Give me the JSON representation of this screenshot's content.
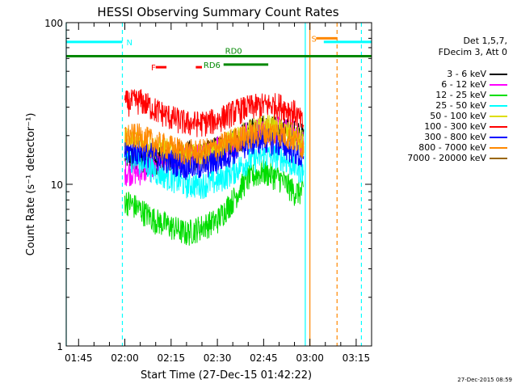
{
  "chart_data": {
    "type": "line",
    "title": "HESSI Observing Summary Count Rates",
    "xlabel": "Start Time (27-Dec-15 01:42:22)",
    "ylabel": "Count Rate (s⁻¹ detector⁻¹)",
    "x_unit": "minutes",
    "xlim_min": [
      101,
      200
    ],
    "ylim": [
      1,
      100
    ],
    "y_scale": "log",
    "x_ticks": [
      {
        "min": 105,
        "label": "01:45"
      },
      {
        "min": 120,
        "label": "02:00"
      },
      {
        "min": 135,
        "label": "02:15"
      },
      {
        "min": 150,
        "label": "02:30"
      },
      {
        "min": 165,
        "label": "02:45"
      },
      {
        "min": 180,
        "label": "03:00"
      },
      {
        "min": 195,
        "label": "03:15"
      }
    ],
    "y_ticks": [
      {
        "value": 1,
        "label": "1"
      },
      {
        "value": 10,
        "label": "10"
      },
      {
        "value": 100,
        "label": "100"
      }
    ],
    "legend_header": [
      "Det 1,5,7,",
      "FDecim 3, Att 0"
    ],
    "legend_placement": "right",
    "series": [
      {
        "name": "3 - 6 keV",
        "color": "#000000",
        "points": [
          [
            120,
            15
          ],
          [
            125,
            14
          ],
          [
            130,
            14
          ],
          [
            135,
            15
          ],
          [
            140,
            16
          ],
          [
            145,
            15
          ],
          [
            150,
            17
          ],
          [
            155,
            18
          ],
          [
            160,
            21
          ],
          [
            165,
            23
          ],
          [
            170,
            22
          ],
          [
            175,
            21
          ],
          [
            178,
            20
          ]
        ]
      },
      {
        "name": "6 - 12 keV",
        "color": "#ff00ff",
        "points": [
          [
            120,
            12
          ],
          [
            125,
            12
          ],
          [
            130,
            13
          ],
          [
            135,
            14
          ],
          [
            140,
            15
          ],
          [
            145,
            15
          ],
          [
            150,
            17
          ],
          [
            155,
            18
          ],
          [
            160,
            21
          ],
          [
            165,
            22
          ],
          [
            170,
            22
          ],
          [
            175,
            21
          ],
          [
            178,
            18
          ]
        ]
      },
      {
        "name": "12 - 25 keV",
        "color": "#00dd00",
        "points": [
          [
            120,
            8
          ],
          [
            125,
            7
          ],
          [
            130,
            6
          ],
          [
            135,
            5.5
          ],
          [
            140,
            5
          ],
          [
            145,
            5.5
          ],
          [
            150,
            6
          ],
          [
            155,
            8
          ],
          [
            160,
            11
          ],
          [
            165,
            12
          ],
          [
            170,
            11
          ],
          [
            175,
            9
          ],
          [
            178,
            9
          ]
        ]
      },
      {
        "name": "25 - 50 keV",
        "color": "#00ffff",
        "points": [
          [
            120,
            15
          ],
          [
            125,
            14
          ],
          [
            130,
            12
          ],
          [
            135,
            11
          ],
          [
            140,
            10
          ],
          [
            145,
            10
          ],
          [
            150,
            10.5
          ],
          [
            155,
            12
          ],
          [
            160,
            14
          ],
          [
            165,
            15
          ],
          [
            170,
            15
          ],
          [
            175,
            13
          ],
          [
            178,
            12
          ]
        ]
      },
      {
        "name": "50 - 100 keV",
        "color": "#dddd00",
        "points": [
          [
            120,
            19
          ],
          [
            125,
            18
          ],
          [
            130,
            17
          ],
          [
            135,
            16
          ],
          [
            140,
            15
          ],
          [
            145,
            15
          ],
          [
            150,
            16
          ],
          [
            155,
            19
          ],
          [
            160,
            21
          ],
          [
            165,
            23
          ],
          [
            170,
            22
          ],
          [
            175,
            20
          ],
          [
            178,
            18
          ]
        ]
      },
      {
        "name": "100 - 300 keV",
        "color": "#ff0000",
        "points": [
          [
            120,
            32
          ],
          [
            125,
            33
          ],
          [
            130,
            29
          ],
          [
            135,
            26
          ],
          [
            140,
            24
          ],
          [
            145,
            24
          ],
          [
            150,
            25
          ],
          [
            155,
            28
          ],
          [
            160,
            30
          ],
          [
            165,
            31
          ],
          [
            170,
            31
          ],
          [
            175,
            28
          ],
          [
            178,
            23
          ]
        ]
      },
      {
        "name": "300 - 800 keV",
        "color": "#0000ff",
        "points": [
          [
            120,
            16
          ],
          [
            125,
            16
          ],
          [
            130,
            15
          ],
          [
            135,
            14
          ],
          [
            140,
            13
          ],
          [
            145,
            13
          ],
          [
            150,
            14
          ],
          [
            155,
            16
          ],
          [
            160,
            18
          ],
          [
            165,
            19
          ],
          [
            170,
            18
          ],
          [
            175,
            16
          ],
          [
            178,
            14
          ]
        ]
      },
      {
        "name": "800 - 7000 keV",
        "color": "#ff8800",
        "points": [
          [
            120,
            20
          ],
          [
            125,
            20
          ],
          [
            130,
            18
          ],
          [
            135,
            17
          ],
          [
            140,
            16
          ],
          [
            145,
            16
          ],
          [
            150,
            17
          ],
          [
            155,
            19
          ],
          [
            160,
            20
          ],
          [
            165,
            21
          ],
          [
            170,
            21
          ],
          [
            175,
            19
          ],
          [
            178,
            17
          ]
        ]
      },
      {
        "name": "7000 - 20000 keV",
        "color": "#996600",
        "points": []
      }
    ],
    "flag_bars": [
      {
        "label": "N",
        "color": "#00ffff",
        "y": 76,
        "segments": [
          [
            101,
            119.2
          ],
          [
            184.5,
            200
          ]
        ]
      },
      {
        "label": "S",
        "color": "#ff8800",
        "y": 80,
        "segments": [
          [
            182,
            188.8
          ]
        ]
      },
      {
        "label": "F",
        "color": "#ff0000",
        "y": 53,
        "segments": [
          [
            130,
            133.5
          ],
          [
            143,
            145
          ]
        ]
      },
      {
        "label": "RD0",
        "color": "#008800",
        "y": 62,
        "segments": [
          [
            101,
            200
          ]
        ]
      },
      {
        "label": "RD6",
        "color": "#008800",
        "y": 55,
        "segments": [
          [
            152,
            166.5
          ]
        ]
      }
    ],
    "vlines": [
      {
        "min": 101,
        "color": "#00ffff",
        "style": "solid"
      },
      {
        "min": 119.2,
        "color": "#00ffff",
        "style": "dashed"
      },
      {
        "min": 178.5,
        "color": "#00ffff",
        "style": "solid"
      },
      {
        "min": 180,
        "color": "#ff8800",
        "style": "solid"
      },
      {
        "min": 188.8,
        "color": "#ff8800",
        "style": "dashed"
      },
      {
        "min": 196.7,
        "color": "#00ffff",
        "style": "dashed"
      }
    ]
  },
  "footer_timestamp": "27-Dec-2015 08:59"
}
